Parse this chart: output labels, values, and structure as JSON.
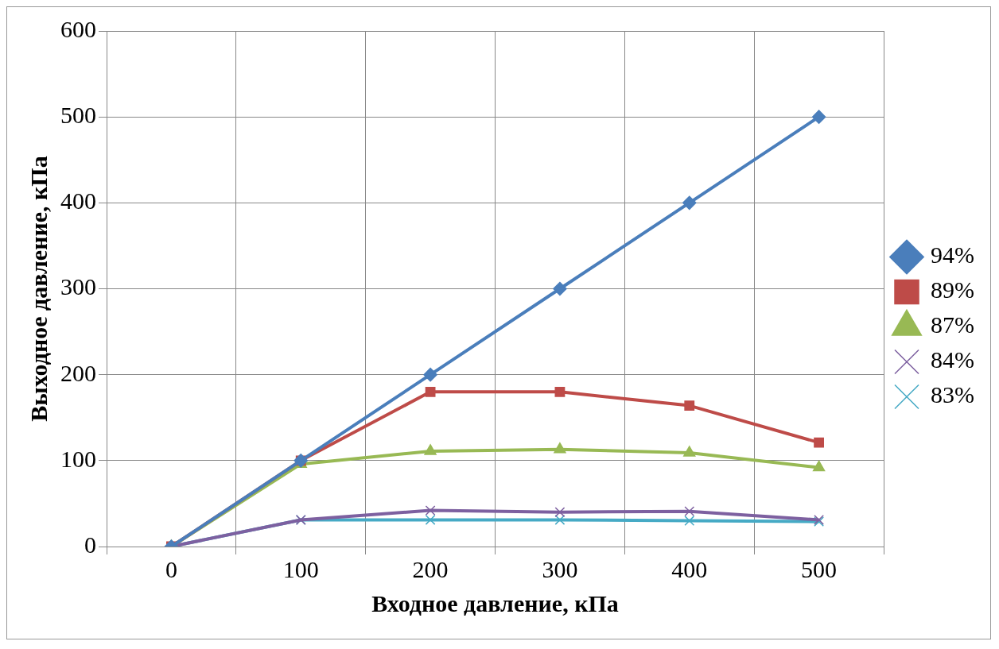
{
  "chart_data": {
    "type": "line",
    "xlabel": "Входное давление, кПа",
    "ylabel": "Выходное давление, кПа",
    "categories": [
      "0",
      "100",
      "200",
      "300",
      "400",
      "500"
    ],
    "series": [
      {
        "name": "94%",
        "color": "#4a7ebb",
        "marker": "diamond",
        "values": [
          0,
          100,
          200,
          300,
          400,
          500
        ]
      },
      {
        "name": "89%",
        "color": "#be4b48",
        "marker": "square",
        "values": [
          0,
          100,
          180,
          180,
          164,
          121
        ]
      },
      {
        "name": "87%",
        "color": "#98b954",
        "marker": "triangle",
        "values": [
          0,
          96,
          111,
          113,
          109,
          92
        ]
      },
      {
        "name": "84%",
        "color": "#7d60a0",
        "marker": "cross",
        "values": [
          0,
          31,
          42,
          40,
          41,
          31
        ]
      },
      {
        "name": "83%",
        "color": "#46aac5",
        "marker": "cross",
        "values": [
          0,
          31,
          31,
          31,
          30,
          29
        ]
      }
    ],
    "ylim": [
      0,
      600
    ],
    "yticks": [
      0,
      100,
      200,
      300,
      400,
      500,
      600
    ],
    "grid": true,
    "legend": "right",
    "line_style": "solid"
  }
}
